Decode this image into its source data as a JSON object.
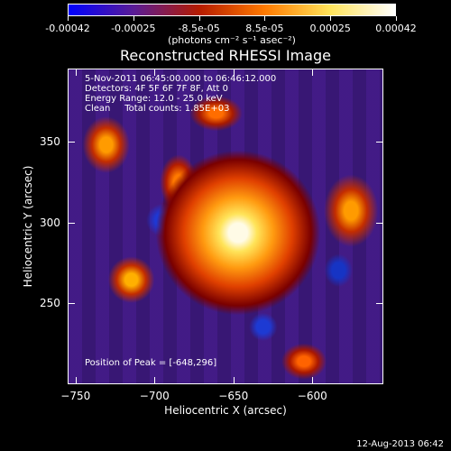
{
  "colorbar": {
    "ticks": [
      "-0.00042",
      "-0.00025",
      "-8.5e-05",
      "8.5e-05",
      "0.00025",
      "0.00042"
    ],
    "units": "(photons cm⁻² s⁻¹ asec⁻²)"
  },
  "chart_data": {
    "type": "heatmap",
    "title": "Reconstructed RHESSI Image",
    "xlabel": "Heliocentric X (arcsec)",
    "ylabel": "Heliocentric Y (arcsec)",
    "xlim": [
      -755,
      -555
    ],
    "ylim": [
      200,
      395
    ],
    "x_ticks": [
      -750,
      -700,
      -650,
      -600
    ],
    "y_ticks": [
      250,
      300,
      350
    ],
    "value_range": [
      -0.00042,
      0.00042
    ],
    "colormap": [
      "#0000ff",
      "#5a1c96",
      "#b51b00",
      "#ff7a00",
      "#ffe45a",
      "#ffffff"
    ],
    "peak": {
      "x": -648,
      "y": 296
    },
    "annotation": [
      "5-Nov-2011 06:45:00.000 to 06:46:12.000",
      "Detectors: 4F 5F 6F 7F 8F, Att 0",
      "Energy Range: 12.0 - 25.0 keV",
      "Clean     Total counts: 1.85E+03"
    ],
    "peak_text": "Position of Peak = [-648,296]"
  },
  "footer": {
    "date": "12-Aug-2013 06:42"
  }
}
